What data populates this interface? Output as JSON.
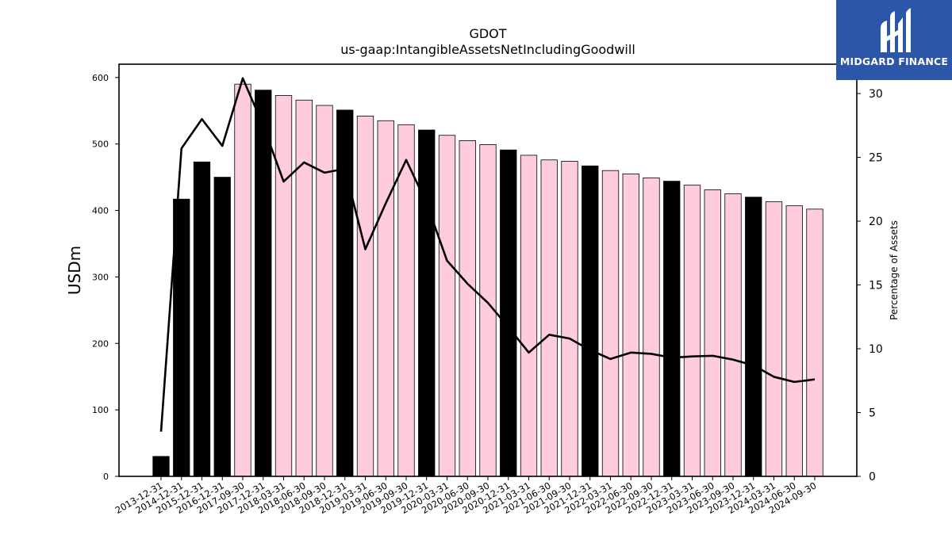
{
  "brand": {
    "name": "MIDGARD FINANCE",
    "logo_icon": "midgard-mi-logo-icon",
    "background": "#2c56a8"
  },
  "chart_data": {
    "type": "bar",
    "title": "GDOT",
    "subtitle": "us-gaap:IntangibleAssetsNetIncludingGoodwill",
    "ylabel": "USDm",
    "y2label": "Percentage of Assets",
    "ylim": [
      0,
      620
    ],
    "y2lim": [
      0,
      32.3
    ],
    "yticks": [
      0,
      100,
      200,
      300,
      400,
      500,
      600
    ],
    "y2ticks": [
      0,
      5,
      10,
      15,
      20,
      25,
      30
    ],
    "colors": {
      "annual": "#000000",
      "quarterly": "#ffccdd",
      "line": "#000000"
    },
    "categories": [
      "2013-12-31",
      "2014-12-31",
      "2015-12-31",
      "2016-12-31",
      "2017-09-30",
      "2017-12-31",
      "2018-03-31",
      "2018-06-30",
      "2018-09-30",
      "2018-12-31",
      "2019-03-31",
      "2019-06-30",
      "2019-09-30",
      "2019-12-31",
      "2020-03-31",
      "2020-06-30",
      "2020-09-30",
      "2020-12-31",
      "2021-03-31",
      "2021-06-30",
      "2021-09-30",
      "2021-12-31",
      "2022-03-31",
      "2022-06-30",
      "2022-09-30",
      "2022-12-31",
      "2023-03-31",
      "2023-06-30",
      "2023-09-30",
      "2023-12-31",
      "2024-03-31",
      "2024-06-30",
      "2024-09-30"
    ],
    "series": [
      {
        "kind": "bar",
        "values": [
          30,
          417,
          473,
          450,
          590,
          581,
          573,
          566,
          558,
          551,
          542,
          535,
          529,
          521,
          513,
          505,
          499,
          491,
          483,
          476,
          474,
          467,
          460,
          455,
          449,
          444,
          438,
          431,
          425,
          420,
          413,
          407,
          402
        ],
        "period": [
          "annual",
          "annual",
          "annual",
          "annual",
          "quarterly",
          "annual",
          "quarterly",
          "quarterly",
          "quarterly",
          "annual",
          "quarterly",
          "quarterly",
          "quarterly",
          "annual",
          "quarterly",
          "quarterly",
          "quarterly",
          "annual",
          "quarterly",
          "quarterly",
          "quarterly",
          "annual",
          "quarterly",
          "quarterly",
          "quarterly",
          "annual",
          "quarterly",
          "quarterly",
          "quarterly",
          "annual",
          "quarterly",
          "quarterly",
          "quarterly"
        ]
      },
      {
        "kind": "line",
        "axis": "right",
        "values": [
          3.5,
          25.7,
          28.0,
          25.9,
          31.2,
          27.5,
          23.1,
          24.6,
          23.8,
          24.1,
          17.8,
          21.4,
          24.8,
          21.4,
          16.9,
          15.1,
          13.6,
          11.7,
          9.7,
          11.1,
          10.8,
          9.9,
          9.2,
          9.7,
          9.6,
          9.3,
          9.4,
          9.45,
          9.15,
          8.7,
          7.8,
          7.4,
          7.6
        ]
      }
    ],
    "grid": false,
    "legend": "none"
  }
}
